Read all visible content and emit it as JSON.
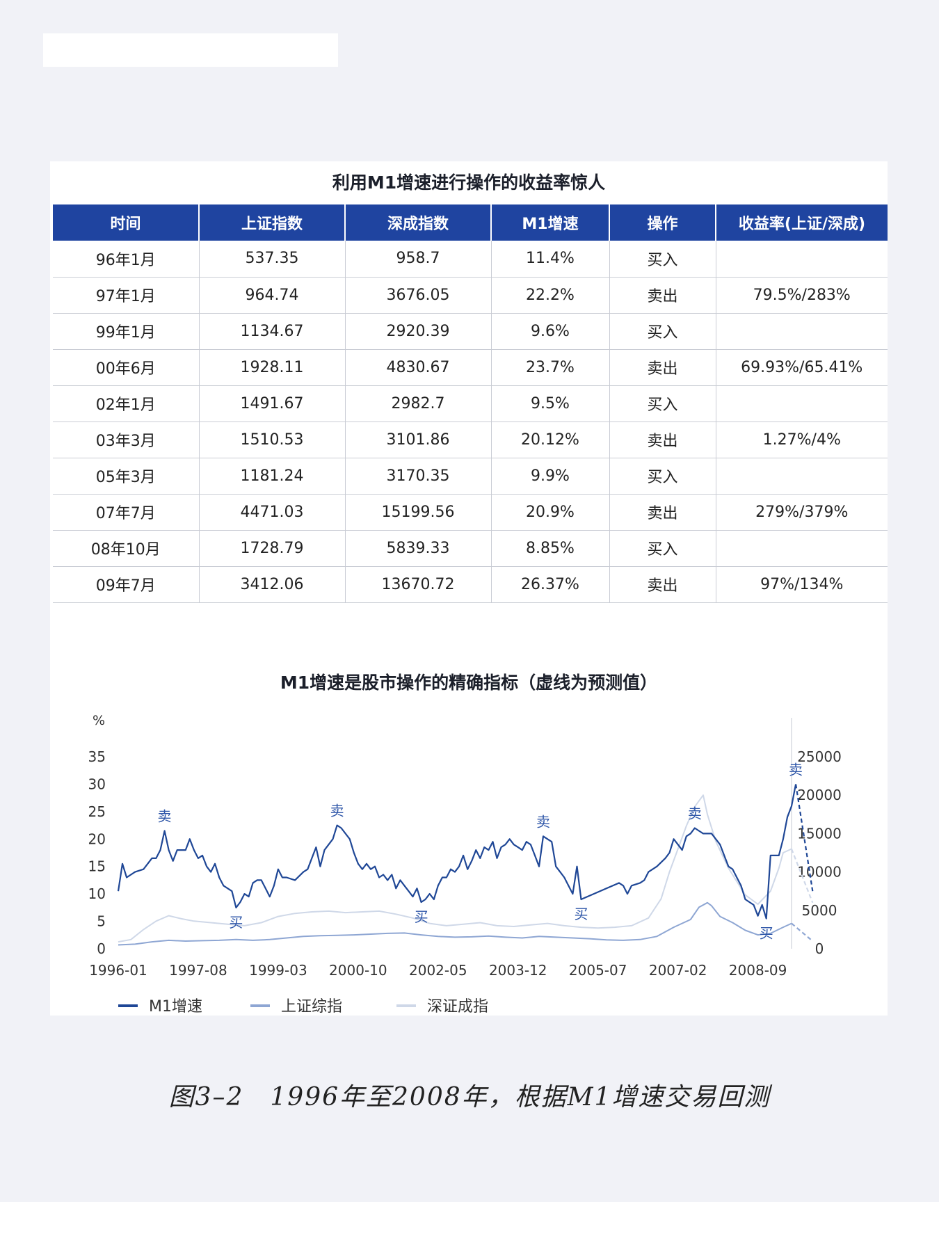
{
  "table": {
    "title": "利用M1增速进行操作的收益率惊人",
    "headers": [
      "时间",
      "上证指数",
      "深成指数",
      "M1增速",
      "操作",
      "收益率(上证/深成)"
    ],
    "rows": [
      [
        "96年1月",
        "537.35",
        "958.7",
        "11.4%",
        "买入",
        ""
      ],
      [
        "97年1月",
        "964.74",
        "3676.05",
        "22.2%",
        "卖出",
        "79.5%/283%"
      ],
      [
        "99年1月",
        "1134.67",
        "2920.39",
        "9.6%",
        "买入",
        ""
      ],
      [
        "00年6月",
        "1928.11",
        "4830.67",
        "23.7%",
        "卖出",
        "69.93%/65.41%"
      ],
      [
        "02年1月",
        "1491.67",
        "2982.7",
        "9.5%",
        "买入",
        ""
      ],
      [
        "03年3月",
        "1510.53",
        "3101.86",
        "20.12%",
        "卖出",
        "1.27%/4%"
      ],
      [
        "05年3月",
        "1181.24",
        "3170.35",
        "9.9%",
        "买入",
        ""
      ],
      [
        "07年7月",
        "4471.03",
        "15199.56",
        "20.9%",
        "卖出",
        "279%/379%"
      ],
      [
        "08年10月",
        "1728.79",
        "5839.33",
        "8.85%",
        "买入",
        ""
      ],
      [
        "09年7月",
        "3412.06",
        "13670.72",
        "26.37%",
        "卖出",
        "97%/134%"
      ]
    ]
  },
  "chart_data": {
    "type": "line",
    "title": "M1增速是股市操作的精确指标（虚线为预测值）",
    "left_axis_unit": "%",
    "left_ylim": [
      0,
      35
    ],
    "left_ticks": [
      "0",
      "5",
      "10",
      "15",
      "20",
      "25",
      "30",
      "35"
    ],
    "right_ylim": [
      0,
      25000
    ],
    "right_ticks": [
      "0",
      "5000",
      "10000",
      "15000",
      "20000",
      "25000"
    ],
    "x_ticks": [
      "1996-01",
      "1997-08",
      "1999-03",
      "2000-10",
      "2002-05",
      "2003-12",
      "2005-07",
      "2007-02",
      "2008-09"
    ],
    "x_range": [
      0,
      160
    ],
    "grid": false,
    "legend_position": "bottom-left",
    "series": [
      {
        "name": "M1增速",
        "axis": "left",
        "color": "#1f4796",
        "points": [
          [
            0,
            10.5
          ],
          [
            1,
            15.5
          ],
          [
            2,
            13
          ],
          [
            4,
            14
          ],
          [
            6,
            14.5
          ],
          [
            8,
            16.5
          ],
          [
            9,
            16.5
          ],
          [
            10,
            18
          ],
          [
            11,
            21.5
          ],
          [
            12,
            18
          ],
          [
            13,
            16
          ],
          [
            14,
            18
          ],
          [
            15,
            18
          ],
          [
            16,
            18
          ],
          [
            17,
            20
          ],
          [
            18,
            18
          ],
          [
            19,
            16.5
          ],
          [
            20,
            17
          ],
          [
            21,
            15
          ],
          [
            22,
            14
          ],
          [
            23,
            15.5
          ],
          [
            24,
            13
          ],
          [
            25,
            11.5
          ],
          [
            27,
            10.5
          ],
          [
            28,
            7.5
          ],
          [
            29,
            8.5
          ],
          [
            30,
            10
          ],
          [
            31,
            9.5
          ],
          [
            32,
            12
          ],
          [
            33,
            12.5
          ],
          [
            34,
            12.5
          ],
          [
            35,
            11
          ],
          [
            36,
            9.5
          ],
          [
            37,
            11.5
          ],
          [
            38,
            14.5
          ],
          [
            39,
            13
          ],
          [
            40,
            13
          ],
          [
            42,
            12.5
          ],
          [
            44,
            14
          ],
          [
            45,
            14.5
          ],
          [
            46,
            16.5
          ],
          [
            47,
            18.5
          ],
          [
            48,
            15
          ],
          [
            49,
            18
          ],
          [
            51,
            20
          ],
          [
            52,
            22.5
          ],
          [
            53,
            22
          ],
          [
            55,
            20
          ],
          [
            56,
            17.5
          ],
          [
            57,
            15.5
          ],
          [
            58,
            14.5
          ],
          [
            59,
            15.5
          ],
          [
            60,
            14.5
          ],
          [
            61,
            15
          ],
          [
            62,
            13
          ],
          [
            63,
            13.5
          ],
          [
            64,
            12.5
          ],
          [
            65,
            13.5
          ],
          [
            66,
            11
          ],
          [
            67,
            12.5
          ],
          [
            68,
            11.5
          ],
          [
            69,
            10.5
          ],
          [
            70,
            9.5
          ],
          [
            71,
            11
          ],
          [
            72,
            8.5
          ],
          [
            73,
            9
          ],
          [
            74,
            10
          ],
          [
            75,
            9
          ],
          [
            76,
            11.5
          ],
          [
            77,
            13
          ],
          [
            78,
            13
          ],
          [
            79,
            14.5
          ],
          [
            80,
            14
          ],
          [
            81,
            15
          ],
          [
            82,
            17
          ],
          [
            83,
            14.5
          ],
          [
            84,
            16
          ],
          [
            85,
            18
          ],
          [
            86,
            16.5
          ],
          [
            87,
            18.5
          ],
          [
            88,
            18
          ],
          [
            89,
            19.5
          ],
          [
            90,
            16.5
          ],
          [
            91,
            18.5
          ],
          [
            92,
            19
          ],
          [
            93,
            20
          ],
          [
            94,
            19
          ],
          [
            95,
            18.5
          ],
          [
            96,
            18
          ],
          [
            97,
            19.5
          ],
          [
            98,
            19
          ],
          [
            99,
            17
          ],
          [
            100,
            15
          ],
          [
            101,
            20.5
          ],
          [
            102,
            20
          ],
          [
            103,
            19.5
          ],
          [
            104,
            15
          ],
          [
            105,
            14
          ],
          [
            106,
            13
          ],
          [
            107,
            11.5
          ],
          [
            108,
            10
          ],
          [
            109,
            15
          ],
          [
            110,
            9
          ],
          [
            113,
            10
          ],
          [
            116,
            11
          ],
          [
            119,
            12
          ],
          [
            120,
            11.5
          ],
          [
            121,
            10
          ],
          [
            122,
            11.5
          ],
          [
            124,
            12
          ],
          [
            125,
            12.5
          ],
          [
            126,
            14
          ],
          [
            128,
            15
          ],
          [
            130,
            16.5
          ],
          [
            131,
            17.5
          ],
          [
            132,
            20
          ],
          [
            133,
            19
          ],
          [
            134,
            18
          ],
          [
            135,
            20.5
          ],
          [
            136,
            21
          ],
          [
            137,
            22
          ],
          [
            138,
            21.5
          ],
          [
            139,
            21
          ],
          [
            141,
            21
          ],
          [
            142,
            20
          ],
          [
            143,
            19
          ],
          [
            144,
            17
          ],
          [
            145,
            15
          ],
          [
            146,
            14.5
          ],
          [
            147,
            13
          ],
          [
            148,
            11.5
          ],
          [
            149,
            9
          ],
          [
            150,
            8.5
          ],
          [
            151,
            8
          ],
          [
            152,
            6
          ],
          [
            153,
            8
          ],
          [
            154,
            5.5
          ],
          [
            155,
            17
          ],
          [
            157,
            17
          ],
          [
            158,
            20
          ],
          [
            159,
            24
          ],
          [
            160,
            26
          ],
          [
            161,
            30
          ]
        ],
        "forecast": [
          [
            161,
            30
          ],
          [
            165,
            10.5
          ]
        ]
      },
      {
        "name": "上证综指",
        "axis": "right",
        "color": "#8ea6d3",
        "points": [
          [
            0,
            500
          ],
          [
            4,
            600
          ],
          [
            8,
            900
          ],
          [
            12,
            1100
          ],
          [
            16,
            1000
          ],
          [
            20,
            1050
          ],
          [
            24,
            1100
          ],
          [
            28,
            1200
          ],
          [
            32,
            1100
          ],
          [
            36,
            1200
          ],
          [
            40,
            1400
          ],
          [
            44,
            1600
          ],
          [
            48,
            1700
          ],
          [
            52,
            1750
          ],
          [
            56,
            1800
          ],
          [
            60,
            1900
          ],
          [
            64,
            2000
          ],
          [
            68,
            2050
          ],
          [
            72,
            1800
          ],
          [
            76,
            1600
          ],
          [
            80,
            1500
          ],
          [
            84,
            1550
          ],
          [
            88,
            1650
          ],
          [
            92,
            1500
          ],
          [
            96,
            1400
          ],
          [
            100,
            1600
          ],
          [
            104,
            1500
          ],
          [
            108,
            1400
          ],
          [
            112,
            1300
          ],
          [
            116,
            1150
          ],
          [
            120,
            1100
          ],
          [
            124,
            1200
          ],
          [
            128,
            1600
          ],
          [
            132,
            2800
          ],
          [
            136,
            3800
          ],
          [
            138,
            5400
          ],
          [
            140,
            6000
          ],
          [
            141,
            5600
          ],
          [
            143,
            4200
          ],
          [
            146,
            3400
          ],
          [
            149,
            2400
          ],
          [
            152,
            1800
          ],
          [
            155,
            2000
          ],
          [
            158,
            2800
          ],
          [
            160,
            3300
          ]
        ],
        "forecast": [
          [
            160,
            3300
          ],
          [
            165,
            1000
          ]
        ]
      },
      {
        "name": "深证成指",
        "axis": "right",
        "color": "#cfd8e8",
        "points": [
          [
            0,
            900
          ],
          [
            3,
            1200
          ],
          [
            6,
            2500
          ],
          [
            9,
            3600
          ],
          [
            12,
            4300
          ],
          [
            15,
            3900
          ],
          [
            18,
            3600
          ],
          [
            22,
            3400
          ],
          [
            26,
            3200
          ],
          [
            30,
            3000
          ],
          [
            34,
            3400
          ],
          [
            38,
            4200
          ],
          [
            42,
            4600
          ],
          [
            46,
            4800
          ],
          [
            50,
            4900
          ],
          [
            54,
            4700
          ],
          [
            58,
            4800
          ],
          [
            62,
            4900
          ],
          [
            66,
            4500
          ],
          [
            70,
            4000
          ],
          [
            74,
            3300
          ],
          [
            78,
            3000
          ],
          [
            82,
            3200
          ],
          [
            86,
            3400
          ],
          [
            90,
            3000
          ],
          [
            94,
            2900
          ],
          [
            98,
            3100
          ],
          [
            102,
            3300
          ],
          [
            106,
            3000
          ],
          [
            110,
            2800
          ],
          [
            114,
            2700
          ],
          [
            118,
            2800
          ],
          [
            122,
            3000
          ],
          [
            126,
            4000
          ],
          [
            129,
            6500
          ],
          [
            131,
            10000
          ],
          [
            133,
            13000
          ],
          [
            135,
            16000
          ],
          [
            137,
            18500
          ],
          [
            139,
            20000
          ],
          [
            140,
            17500
          ],
          [
            142,
            14000
          ],
          [
            145,
            10500
          ],
          [
            149,
            7000
          ],
          [
            152,
            5800
          ],
          [
            155,
            7500
          ],
          [
            157,
            10500
          ],
          [
            158,
            12500
          ],
          [
            160,
            13000
          ]
        ],
        "forecast": [
          [
            160,
            13000
          ],
          [
            165,
            6000
          ]
        ]
      }
    ],
    "annotations": [
      {
        "text": "卖",
        "x": 11,
        "y": 21.5
      },
      {
        "text": "买",
        "x": 28,
        "y": 7.5
      },
      {
        "text": "卖",
        "x": 52,
        "y": 22.5
      },
      {
        "text": "买",
        "x": 72,
        "y": 8.5
      },
      {
        "text": "卖",
        "x": 101,
        "y": 20.5
      },
      {
        "text": "买",
        "x": 110,
        "y": 9
      },
      {
        "text": "卖",
        "x": 137,
        "y": 22
      },
      {
        "text": "买",
        "x": 154,
        "y": 5.5
      },
      {
        "text": "卖",
        "x": 161,
        "y": 30
      }
    ]
  },
  "caption": "图3–2　1996年至2008年，根据M1增速交易回测"
}
